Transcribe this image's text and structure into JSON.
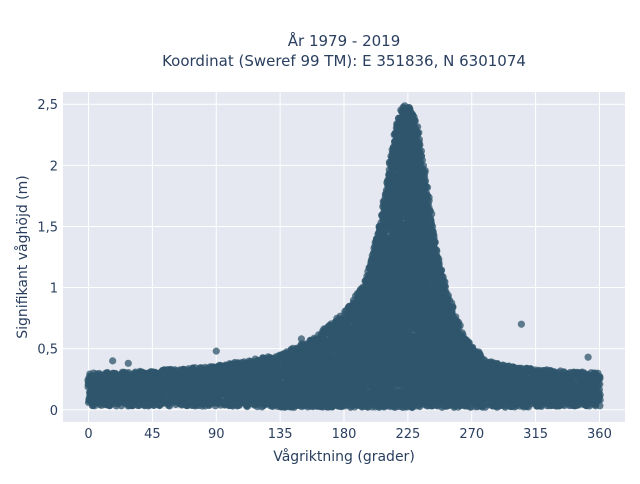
{
  "chart_data": {
    "type": "scatter",
    "title_line1": "År 1979 - 2019",
    "title_line2": "Koordinat (Sweref 99 TM): E 351836, N 6301074",
    "xlabel": "Vågriktning (grader)",
    "ylabel": "Signifikant våghöjd (m)",
    "xlim": [
      -18,
      378
    ],
    "ylim": [
      -0.1,
      2.6
    ],
    "xticks": [
      0,
      45,
      90,
      135,
      180,
      225,
      270,
      315,
      360
    ],
    "xtick_labels": [
      "0",
      "45",
      "90",
      "135",
      "180",
      "225",
      "270",
      "315",
      "360"
    ],
    "yticks": [
      0,
      0.5,
      1,
      1.5,
      2,
      2.5
    ],
    "ytick_labels": [
      "0",
      "0,5",
      "1",
      "1,5",
      "2",
      "2,5"
    ],
    "grid": true,
    "point_color": "#2f556c",
    "plot_background": "#e5e8f0",
    "envelope": {
      "x": [
        0,
        45,
        90,
        135,
        160,
        180,
        195,
        205,
        212,
        218,
        222,
        226,
        230,
        235,
        240,
        245,
        255,
        265,
        280,
        300,
        330,
        360
      ],
      "y_max": [
        0.3,
        0.32,
        0.36,
        0.45,
        0.6,
        0.8,
        1.05,
        1.5,
        2.0,
        2.4,
        2.5,
        2.48,
        2.4,
        2.1,
        1.7,
        1.3,
        0.9,
        0.6,
        0.4,
        0.35,
        0.32,
        0.3
      ],
      "y_min": [
        0.03,
        0.03,
        0.03,
        0.02,
        0.02,
        0.02,
        0.02,
        0.02,
        0.02,
        0.02,
        0.02,
        0.02,
        0.02,
        0.02,
        0.02,
        0.02,
        0.02,
        0.02,
        0.02,
        0.02,
        0.03,
        0.03
      ]
    },
    "outliers": [
      {
        "x": 90,
        "y": 0.48
      },
      {
        "x": 150,
        "y": 0.58
      },
      {
        "x": 305,
        "y": 0.7
      },
      {
        "x": 352,
        "y": 0.43
      },
      {
        "x": 17,
        "y": 0.4
      },
      {
        "x": 28,
        "y": 0.38
      }
    ]
  }
}
